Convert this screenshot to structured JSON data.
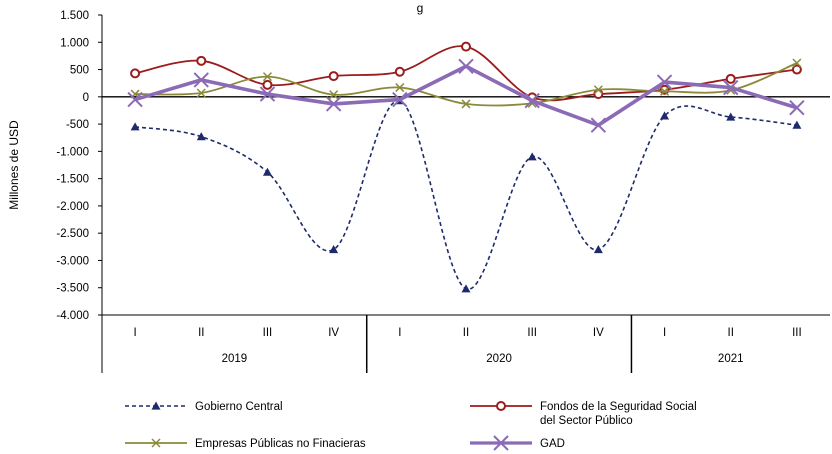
{
  "chart_data": {
    "type": "line",
    "title_fragment": "g",
    "ylabel": "Millones de USD",
    "ylim": [
      -4000,
      1500
    ],
    "yticks": [
      1500,
      1000,
      500,
      0,
      -500,
      -1000,
      -1500,
      -2000,
      -2500,
      -3000,
      -3500,
      -4000
    ],
    "ytick_labels": [
      "1.500",
      "1.000",
      "500",
      "0",
      "-500",
      "-1.000",
      "-1.500",
      "-2.000",
      "-2.500",
      "-3.000",
      "-3.500",
      "-4.000"
    ],
    "quarters": [
      "I",
      "II",
      "III",
      "IV",
      "I",
      "II",
      "III",
      "IV",
      "I",
      "II",
      "III"
    ],
    "years": [
      {
        "label": "2019",
        "start": 0,
        "count": 4
      },
      {
        "label": "2020",
        "start": 4,
        "count": 4
      },
      {
        "label": "2021",
        "start": 8,
        "count": 3
      }
    ],
    "grid": false,
    "legend_position": "bottom",
    "series": [
      {
        "name": "Gobierno Central",
        "color": "#1f2a6b",
        "dash": true,
        "marker": "triangle",
        "width": 1.6,
        "values": [
          -550,
          -730,
          -1380,
          -2800,
          -70,
          -3520,
          -1100,
          -2800,
          -350,
          -370,
          -520
        ]
      },
      {
        "name": "Fondos de la Seguridad Social del Sector Público",
        "name_lines": [
          "Fondos de la Seguridad Social",
          "del Sector Público"
        ],
        "color": "#9b1c1c",
        "dash": false,
        "marker": "circle",
        "width": 1.8,
        "values": [
          430,
          660,
          220,
          380,
          460,
          920,
          -10,
          50,
          130,
          330,
          500
        ]
      },
      {
        "name": "Empresas Públicas no Finacieras",
        "color": "#8a8a3a",
        "dash": false,
        "marker": "x",
        "width": 1.8,
        "values": [
          50,
          70,
          370,
          40,
          170,
          -130,
          -120,
          130,
          100,
          120,
          620
        ]
      },
      {
        "name": "GAD",
        "color": "#8b6bb5",
        "dash": false,
        "marker": "x",
        "width": 3.6,
        "values": [
          -50,
          310,
          50,
          -130,
          -50,
          560,
          -70,
          -520,
          270,
          170,
          -200
        ]
      }
    ]
  }
}
